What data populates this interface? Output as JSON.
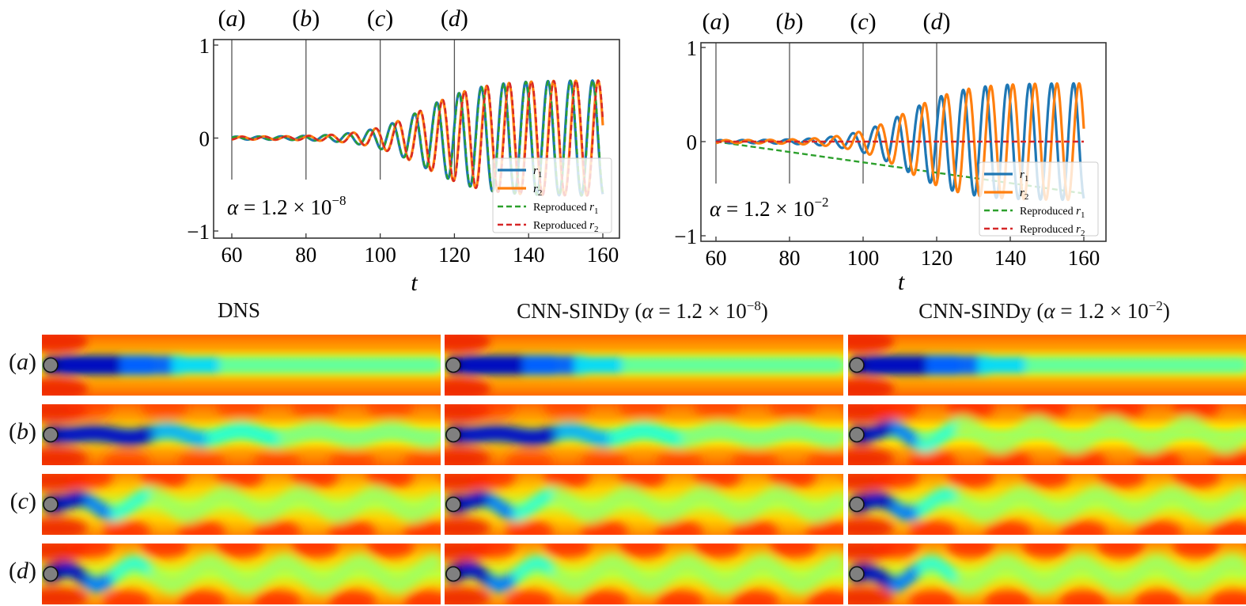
{
  "chart_data": [
    {
      "type": "line",
      "title": "",
      "xlabel": "t",
      "ylabel": "",
      "xlim": [
        55,
        162
      ],
      "ylim": [
        -1.05,
        1.05
      ],
      "xticks": [
        60,
        80,
        100,
        120,
        140,
        160
      ],
      "yticks": [
        -1,
        0,
        1
      ],
      "ytick_labels": [
        "−1",
        "0",
        "1"
      ],
      "annotation": "α = 1.2 × 10⁻⁸",
      "annotation_base": "α = 1.2 × 10",
      "annotation_exp": "−8",
      "markers": [
        {
          "label": "(a)",
          "t": 60
        },
        {
          "label": "(b)",
          "t": 80
        },
        {
          "label": "(c)",
          "t": 100
        },
        {
          "label": "(d)",
          "t": 120
        }
      ],
      "legend_position": "lower-right",
      "series": [
        {
          "name": "r1",
          "legend": "r₁",
          "color": "#1f77b4",
          "style": "solid",
          "model": "dns",
          "phase": 0
        },
        {
          "name": "r2",
          "legend": "r₂",
          "color": "#ff7f0e",
          "style": "solid",
          "model": "dns",
          "phase": 1.5
        },
        {
          "name": "Reproduced r1",
          "legend": "Reproduced r₁",
          "color": "#2ca02c",
          "style": "dashed",
          "model": "dns",
          "phase": 0.1
        },
        {
          "name": "Reproduced r2",
          "legend": "Reproduced r₂",
          "color": "#d62728",
          "style": "dashed",
          "model": "dns",
          "phase": 1.6
        }
      ],
      "signal": {
        "t_start": 60,
        "t_end": 160,
        "period": 6.0,
        "amplitude_max": 0.62,
        "growth_center": 112,
        "growth_width": 7.5,
        "amplitude_min": 0.015
      }
    },
    {
      "type": "line",
      "title": "",
      "xlabel": "t",
      "ylabel": "",
      "xlim": [
        55,
        162
      ],
      "ylim": [
        -1.05,
        1.05
      ],
      "xticks": [
        60,
        80,
        100,
        120,
        140,
        160
      ],
      "yticks": [
        -1,
        0,
        1
      ],
      "ytick_labels": [
        "−1",
        "0",
        "1"
      ],
      "annotation": "α = 1.2 × 10⁻²",
      "annotation_base": "α = 1.2 × 10",
      "annotation_exp": "−2",
      "markers": [
        {
          "label": "(a)",
          "t": 60
        },
        {
          "label": "(b)",
          "t": 80
        },
        {
          "label": "(c)",
          "t": 100
        },
        {
          "label": "(d)",
          "t": 120
        }
      ],
      "legend_position": "lower-right",
      "series": [
        {
          "name": "r1",
          "legend": "r₁",
          "color": "#1f77b4",
          "style": "solid",
          "model": "dns",
          "phase": 0
        },
        {
          "name": "r2",
          "legend": "r₂",
          "color": "#ff7f0e",
          "style": "solid",
          "model": "dns",
          "phase": 1.5
        },
        {
          "name": "Reproduced r1",
          "legend": "Reproduced r₁",
          "color": "#2ca02c",
          "style": "dashed",
          "model": "linear",
          "y_start": 0.0,
          "y_end": -0.55
        },
        {
          "name": "Reproduced r2",
          "legend": "Reproduced r₂",
          "color": "#d62728",
          "style": "dashed",
          "model": "linear",
          "y_start": 0.0,
          "y_end": 0.0
        }
      ],
      "signal": {
        "t_start": 60,
        "t_end": 160,
        "period": 6.0,
        "amplitude_max": 0.62,
        "growth_center": 112,
        "growth_width": 7.5,
        "amplitude_min": 0.015
      }
    }
  ],
  "fields": {
    "columns": [
      {
        "title": "DNS",
        "title_base": "DNS",
        "title_exp": "",
        "title_tail": ""
      },
      {
        "title": "CNN-SINDy (α = 1.2 × 10⁻⁸)",
        "title_base": "CNN-SINDy (α = 1.2 × 10",
        "title_exp": "−8",
        "title_tail": ")"
      },
      {
        "title": "CNN-SINDy (α = 1.2 × 10⁻²)",
        "title_base": "CNN-SINDy (α = 1.2 × 10",
        "title_exp": "−2",
        "title_tail": ")"
      }
    ],
    "rows": [
      {
        "label_open": "(",
        "label": "a",
        "label_close": ")",
        "t": 60
      },
      {
        "label_open": "(",
        "label": "b",
        "label_close": ")",
        "t": 80
      },
      {
        "label_open": "(",
        "label": "c",
        "label_close": ")",
        "t": 100
      },
      {
        "label_open": "(",
        "label": "d",
        "label_close": ")",
        "t": 120
      }
    ],
    "colormap": "jet",
    "cylinder_color": "#808080"
  }
}
